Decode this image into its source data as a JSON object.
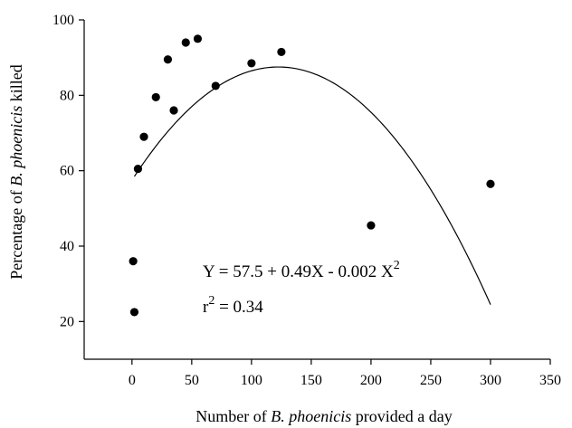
{
  "chart_data": {
    "type": "scatter",
    "xlabel_parts": [
      "Number of ",
      "B. phoenicis",
      " provided a day"
    ],
    "ylabel_parts": [
      "Percentage of ",
      "B. phoenicis",
      " killed"
    ],
    "xlim": [
      -40,
      350
    ],
    "ylim": [
      10,
      100
    ],
    "x_ticks": [
      0,
      50,
      100,
      150,
      200,
      250,
      300,
      350
    ],
    "y_ticks": [
      20,
      40,
      60,
      80,
      100
    ],
    "points": [
      {
        "x": 2,
        "y": 22.5
      },
      {
        "x": 1,
        "y": 36
      },
      {
        "x": 5,
        "y": 60.5
      },
      {
        "x": 10,
        "y": 69
      },
      {
        "x": 20,
        "y": 79.5
      },
      {
        "x": 30,
        "y": 89.5
      },
      {
        "x": 35,
        "y": 76
      },
      {
        "x": 45,
        "y": 94
      },
      {
        "x": 55,
        "y": 95
      },
      {
        "x": 70,
        "y": 82.5
      },
      {
        "x": 100,
        "y": 88.5
      },
      {
        "x": 125,
        "y": 91.5
      },
      {
        "x": 200,
        "y": 45.5
      },
      {
        "x": 300,
        "y": 56.5
      }
    ],
    "fit": {
      "intercept": 57.5,
      "b1": 0.49,
      "b2": -0.002,
      "x_range": [
        2,
        300
      ]
    },
    "equation": {
      "prefix": "Y = 57.5 + 0.49X - 0.002 X",
      "exp": "2"
    },
    "r2": {
      "base": "r",
      "exp": "2",
      "suffix": " = 0.34"
    },
    "grid": false
  }
}
